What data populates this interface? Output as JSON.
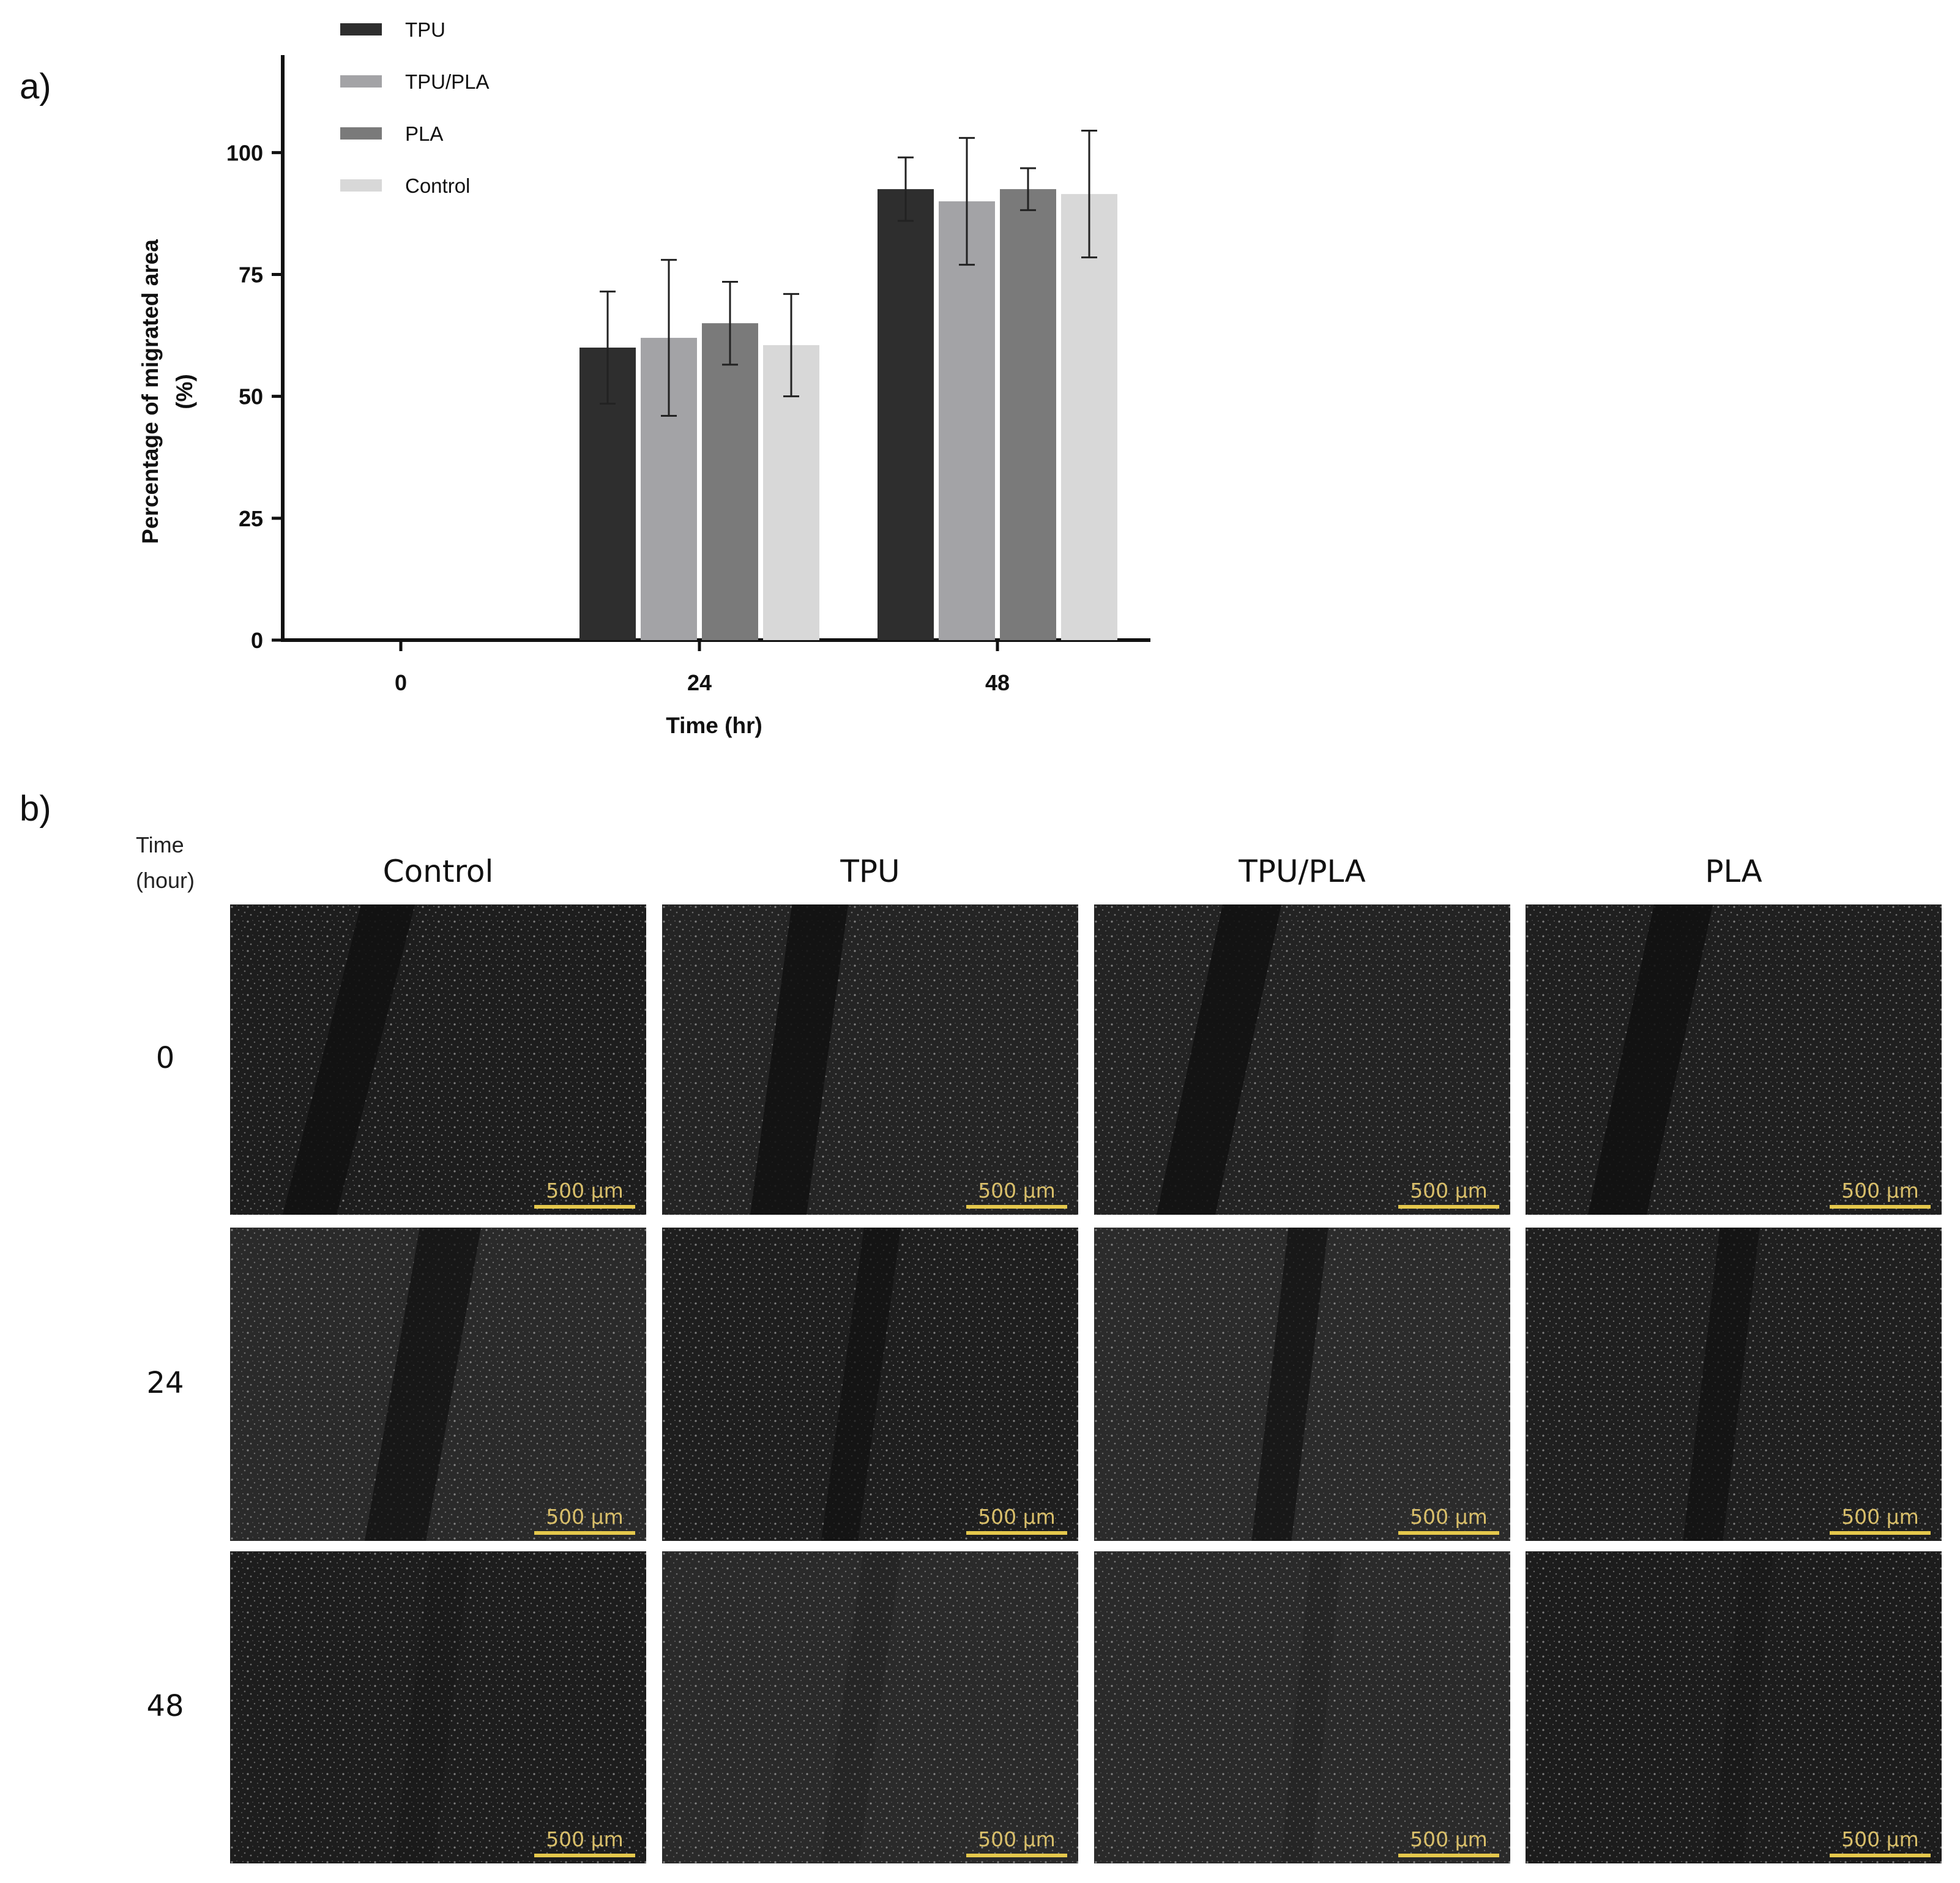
{
  "panel_a_label": "a)",
  "panel_b_label": "b)",
  "chart_data": {
    "type": "bar",
    "categories": [
      "0",
      "24",
      "48"
    ],
    "series": [
      {
        "name": "TPU",
        "color": "#2e2e2e",
        "values": [
          0,
          60,
          92.5
        ],
        "errors": [
          0,
          11.5,
          6.5
        ]
      },
      {
        "name": "TPU/PLA",
        "color": "#a3a3a6",
        "values": [
          0,
          62,
          90
        ],
        "errors": [
          0,
          16,
          13
        ]
      },
      {
        "name": "PLA",
        "color": "#7a7a7a",
        "values": [
          0,
          65,
          92.5
        ],
        "errors": [
          0,
          8.5,
          4.3
        ]
      },
      {
        "name": "Control",
        "color": "#d8d8d8",
        "values": [
          0,
          60.5,
          91.5
        ],
        "errors": [
          0,
          10.5,
          13
        ]
      }
    ],
    "title": "",
    "xlabel": "Time (hr)",
    "ylabel": "Percentage of migrated area",
    "ylabel_unit": "(%)",
    "ylim": [
      0,
      120
    ],
    "yticks": [
      "0",
      "25",
      "50",
      "75",
      "100"
    ],
    "ytick_values": [
      0,
      25,
      50,
      75,
      100
    ],
    "legend_position": "top-left"
  },
  "grid": {
    "time_header_line1": "Time",
    "time_header_line2": "(hour)",
    "columns": [
      "Control",
      "TPU",
      "TPU/PLA",
      "PLA"
    ],
    "rows": [
      "0",
      "24",
      "48"
    ],
    "scale_label": "500 µm"
  }
}
